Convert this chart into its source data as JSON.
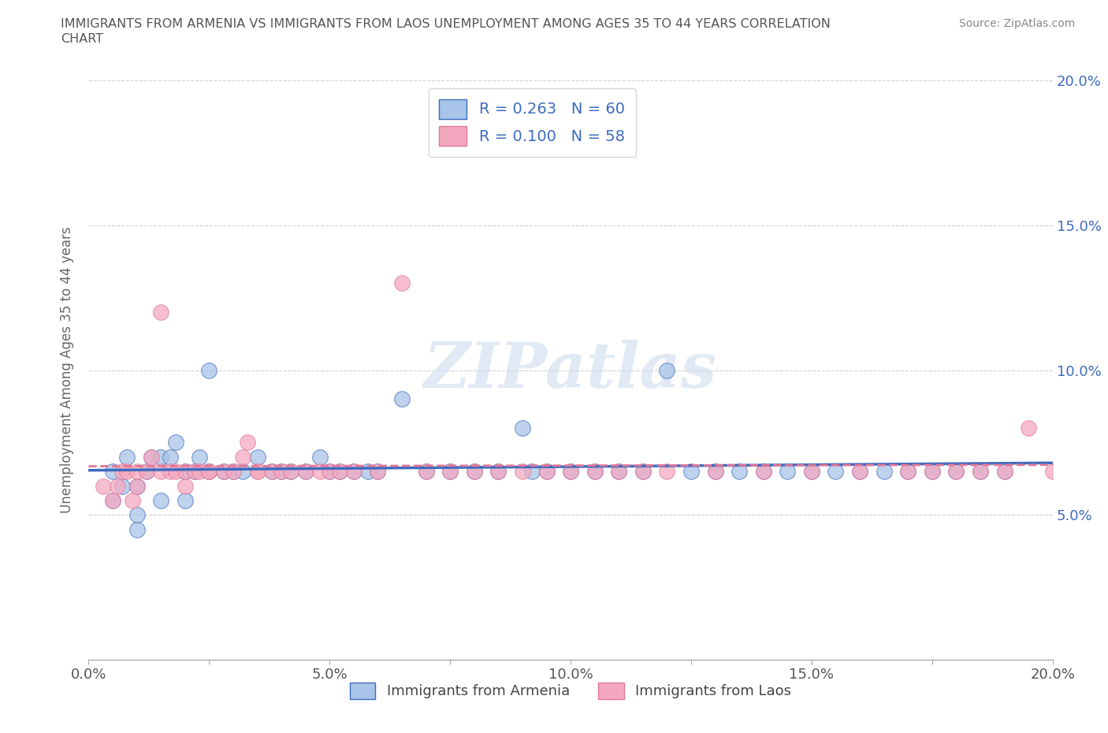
{
  "title_line1": "IMMIGRANTS FROM ARMENIA VS IMMIGRANTS FROM LAOS UNEMPLOYMENT AMONG AGES 35 TO 44 YEARS CORRELATION",
  "title_line2": "CHART",
  "source_text": "Source: ZipAtlas.com",
  "ylabel": "Unemployment Among Ages 35 to 44 years",
  "xlim": [
    0.0,
    0.2
  ],
  "ylim": [
    0.0,
    0.2
  ],
  "xtick_labels": [
    "0.0%",
    "",
    "5.0%",
    "",
    "10.0%",
    "",
    "15.0%",
    "",
    "20.0%"
  ],
  "xtick_vals": [
    0.0,
    0.025,
    0.05,
    0.075,
    0.1,
    0.125,
    0.15,
    0.175,
    0.2
  ],
  "ytick_labels": [
    "5.0%",
    "10.0%",
    "15.0%",
    "20.0%"
  ],
  "ytick_vals": [
    0.05,
    0.1,
    0.15,
    0.2
  ],
  "armenia_color": "#a8c4e8",
  "laos_color": "#f4a8c0",
  "armenia_line_color": "#3d6bbf",
  "laos_line_color": "#e07898",
  "R_armenia": 0.263,
  "N_armenia": 60,
  "R_laos": 0.1,
  "N_laos": 58,
  "legend_label_armenia": "Immigrants from Armenia",
  "legend_label_laos": "Immigrants from Laos",
  "armenia_x": [
    0.005,
    0.005,
    0.007,
    0.008,
    0.01,
    0.01,
    0.01,
    0.012,
    0.013,
    0.015,
    0.015,
    0.017,
    0.018,
    0.02,
    0.02,
    0.022,
    0.023,
    0.025,
    0.025,
    0.028,
    0.03,
    0.032,
    0.035,
    0.038,
    0.04,
    0.042,
    0.045,
    0.048,
    0.05,
    0.052,
    0.055,
    0.058,
    0.06,
    0.065,
    0.07,
    0.075,
    0.08,
    0.085,
    0.09,
    0.092,
    0.095,
    0.1,
    0.105,
    0.11,
    0.115,
    0.12,
    0.125,
    0.13,
    0.135,
    0.14,
    0.145,
    0.15,
    0.155,
    0.16,
    0.165,
    0.17,
    0.175,
    0.18,
    0.185,
    0.19
  ],
  "armenia_y": [
    0.065,
    0.055,
    0.06,
    0.07,
    0.045,
    0.06,
    0.05,
    0.065,
    0.07,
    0.055,
    0.07,
    0.07,
    0.075,
    0.055,
    0.065,
    0.065,
    0.07,
    0.065,
    0.1,
    0.065,
    0.065,
    0.065,
    0.07,
    0.065,
    0.065,
    0.065,
    0.065,
    0.07,
    0.065,
    0.065,
    0.065,
    0.065,
    0.065,
    0.09,
    0.065,
    0.065,
    0.065,
    0.065,
    0.08,
    0.065,
    0.065,
    0.065,
    0.065,
    0.065,
    0.065,
    0.1,
    0.065,
    0.065,
    0.065,
    0.065,
    0.065,
    0.065,
    0.065,
    0.065,
    0.065,
    0.065,
    0.065,
    0.065,
    0.065,
    0.065
  ],
  "laos_x": [
    0.003,
    0.005,
    0.006,
    0.007,
    0.008,
    0.009,
    0.01,
    0.01,
    0.012,
    0.013,
    0.015,
    0.015,
    0.017,
    0.018,
    0.02,
    0.02,
    0.022,
    0.023,
    0.025,
    0.025,
    0.028,
    0.03,
    0.032,
    0.033,
    0.035,
    0.035,
    0.038,
    0.04,
    0.042,
    0.045,
    0.048,
    0.05,
    0.052,
    0.055,
    0.06,
    0.065,
    0.07,
    0.075,
    0.08,
    0.085,
    0.09,
    0.095,
    0.1,
    0.105,
    0.11,
    0.115,
    0.12,
    0.13,
    0.14,
    0.15,
    0.16,
    0.17,
    0.175,
    0.18,
    0.185,
    0.19,
    0.195,
    0.2
  ],
  "laos_y": [
    0.06,
    0.055,
    0.06,
    0.065,
    0.065,
    0.055,
    0.06,
    0.065,
    0.065,
    0.07,
    0.065,
    0.12,
    0.065,
    0.065,
    0.06,
    0.065,
    0.065,
    0.065,
    0.065,
    0.065,
    0.065,
    0.065,
    0.07,
    0.075,
    0.065,
    0.065,
    0.065,
    0.065,
    0.065,
    0.065,
    0.065,
    0.065,
    0.065,
    0.065,
    0.065,
    0.13,
    0.065,
    0.065,
    0.065,
    0.065,
    0.065,
    0.065,
    0.065,
    0.065,
    0.065,
    0.065,
    0.065,
    0.065,
    0.065,
    0.065,
    0.065,
    0.065,
    0.065,
    0.065,
    0.065,
    0.065,
    0.08,
    0.065
  ],
  "watermark": "ZIPatlas",
  "background_color": "#ffffff",
  "grid_color": "#d0d0d0",
  "title_color": "#555555",
  "tick_color": "#3d6bbf"
}
